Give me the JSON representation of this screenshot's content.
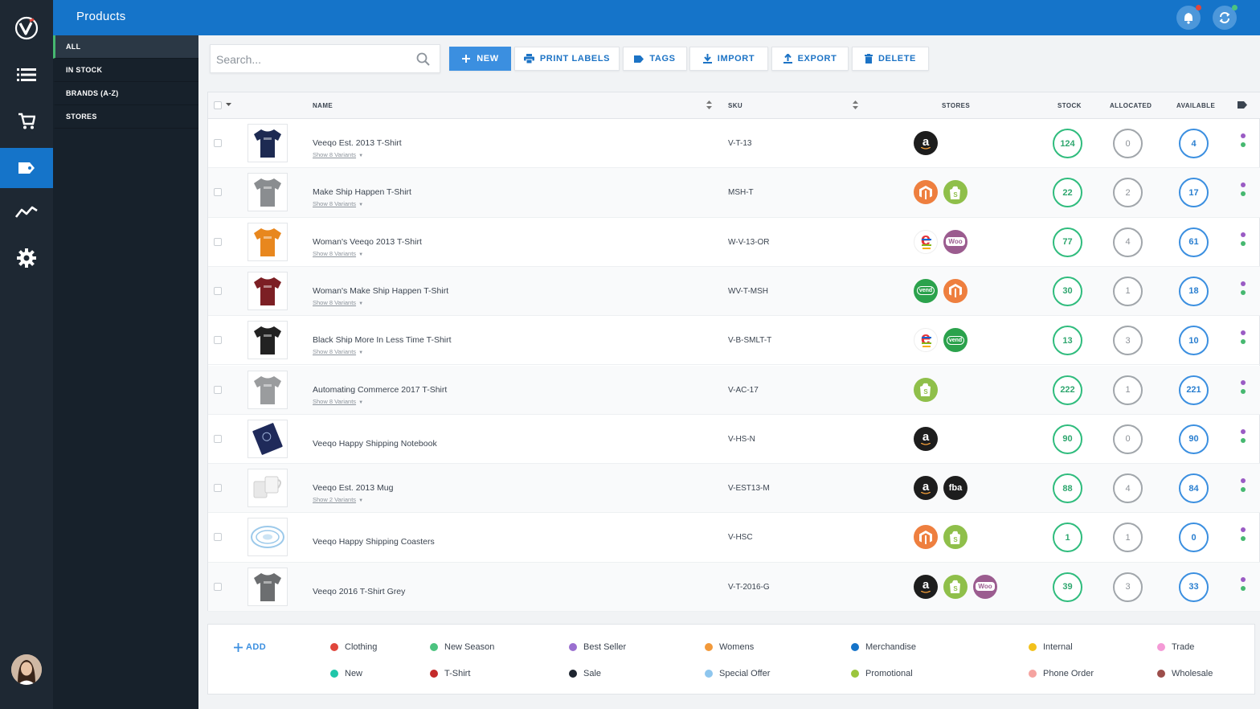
{
  "app": {
    "title": "Products",
    "logo_letter": "V"
  },
  "rail": {
    "items": [
      "list-icon",
      "cart-icon",
      "tag-icon",
      "analytics-icon",
      "gear-icon"
    ],
    "active": "tag-icon"
  },
  "subnav": {
    "items": [
      {
        "label": "ALL"
      },
      {
        "label": "IN STOCK"
      },
      {
        "label": "BRANDS (A-Z)"
      },
      {
        "label": "STORES"
      }
    ],
    "active": "ALL"
  },
  "toolbar": {
    "search_placeholder": "Search...",
    "new_label": "NEW",
    "print_labels_label": "PRINT LABELS",
    "tags_label": "TAGS",
    "import_label": "IMPORT",
    "export_label": "EXPORT",
    "delete_label": "DELETE"
  },
  "table": {
    "columns": {
      "name": "NAME",
      "sku": "SKU",
      "stores": "STORES",
      "stock": "STOCK",
      "allocated": "ALLOCATED",
      "available": "AVAILABLE"
    },
    "rows": [
      {
        "name": "Veeqo Est. 2013 T-Shirt",
        "variants": "Show 8 Variants",
        "sku": "V-T-13",
        "stores": [
          "amazon"
        ],
        "stock": "124",
        "allocated": "0",
        "available": "4",
        "product_color": "#1d2a52",
        "tags": [
          "#9a5bc4",
          "#46b870"
        ]
      },
      {
        "name": "Make Ship Happen T-Shirt",
        "variants": "Show 8 Variants",
        "sku": "MSH-T",
        "stores": [
          "magento",
          "shopify"
        ],
        "stock": "22",
        "allocated": "2",
        "available": "17",
        "product_color": "#8a8d90",
        "tags": [
          "#9a5bc4",
          "#46b870"
        ]
      },
      {
        "name": "Woman's Veeqo 2013 T-Shirt",
        "variants": "Show 8 Variants",
        "sku": "W-V-13-OR",
        "stores": [
          "ebay",
          "woo"
        ],
        "stock": "77",
        "allocated": "4",
        "available": "61",
        "product_color": "#e8871e",
        "tags": [
          "#9a5bc4",
          "#46b870"
        ]
      },
      {
        "name": "Woman's Make Ship Happen T-Shirt",
        "variants": "Show 8 Variants",
        "sku": "WV-T-MSH",
        "stores": [
          "vend",
          "magento"
        ],
        "stock": "30",
        "allocated": "1",
        "available": "18",
        "product_color": "#7c1f24",
        "tags": [
          "#9a5bc4",
          "#46b870"
        ]
      },
      {
        "name": "Black Ship More In Less Time T-Shirt",
        "variants": "Show 8 Variants",
        "sku": "V-B-SMLT-T",
        "stores": [
          "ebay",
          "vend"
        ],
        "stock": "13",
        "allocated": "3",
        "available": "10",
        "product_color": "#222222",
        "tags": [
          "#9a5bc4",
          "#46b870"
        ]
      },
      {
        "name": "Automating Commerce 2017 T-Shirt",
        "variants": "Show 8 Variants",
        "sku": "V-AC-17",
        "stores": [
          "shopify"
        ],
        "stock": "222",
        "allocated": "1",
        "available": "221",
        "product_color": "#9a9c9e",
        "tags": [
          "#9a5bc4",
          "#46b870"
        ]
      },
      {
        "name": "Veeqo Happy Shipping Notebook",
        "variants": "",
        "sku": "V-HS-N",
        "stores": [
          "amazon"
        ],
        "stock": "90",
        "allocated": "0",
        "available": "90",
        "product_color": "#1f2a5a",
        "tags": [
          "#9a5bc4",
          "#46b870"
        ]
      },
      {
        "name": "Veeqo Est. 2013 Mug",
        "variants": "Show 2 Variants",
        "sku": "V-EST13-M",
        "stores": [
          "amazon",
          "fba"
        ],
        "stock": "88",
        "allocated": "4",
        "available": "84",
        "product_color": "#e8e8e8",
        "tags": [
          "#9a5bc4",
          "#46b870"
        ]
      },
      {
        "name": "Veeqo Happy Shipping Coasters",
        "variants": "",
        "sku": "V-HSC",
        "stores": [
          "magento",
          "shopify"
        ],
        "stock": "1",
        "allocated": "1",
        "available": "0",
        "product_color": "#9cc9ea",
        "tags": [
          "#9a5bc4",
          "#46b870"
        ]
      },
      {
        "name": "Veeqo 2016 T-Shirt Grey",
        "variants": "",
        "sku": "V-T-2016-G",
        "stores": [
          "amazon",
          "shopify",
          "woo"
        ],
        "stock": "39",
        "allocated": "3",
        "available": "33",
        "product_color": "#6c6e70",
        "tags": [
          "#9a5bc4",
          "#46b870"
        ]
      }
    ]
  },
  "store_icons": {
    "amazon": {
      "text": "a",
      "bg": "#1d1d1d"
    },
    "magento": {
      "text": "M",
      "bg": "#ee7f3f"
    },
    "shopify": {
      "text": "S",
      "bg": "#8fbf4a"
    },
    "ebay": {
      "text": "e",
      "bg": "#ffffff"
    },
    "woo": {
      "text": "Woo",
      "bg": "#9b5c8f"
    },
    "vend": {
      "text": "vend",
      "bg": "#2ba24c"
    },
    "fba": {
      "text": "fba",
      "bg": "#1d1d1d"
    }
  },
  "legend": {
    "add_label": "ADD",
    "tags": [
      {
        "label": "Clothing",
        "color": "#e0463c"
      },
      {
        "label": "New Season",
        "color": "#4cc37f"
      },
      {
        "label": "Best Seller",
        "color": "#9a6fd0"
      },
      {
        "label": "Womens",
        "color": "#f2993a"
      },
      {
        "label": "Merchandise",
        "color": "#1574c9"
      },
      {
        "label": "Internal",
        "color": "#f2c11c"
      },
      {
        "label": "Trade",
        "color": "#f49ad6"
      },
      {
        "label": "New",
        "color": "#1fc6a9"
      },
      {
        "label": "T-Shirt",
        "color": "#c42b2b"
      },
      {
        "label": "Sale",
        "color": "#1e2530"
      },
      {
        "label": "Special Offer",
        "color": "#8ec6ee"
      },
      {
        "label": "Promotional",
        "color": "#9bc53d"
      },
      {
        "label": "Phone Order",
        "color": "#f5a3a0"
      },
      {
        "label": "Wholesale",
        "color": "#9c4e4b"
      }
    ]
  }
}
